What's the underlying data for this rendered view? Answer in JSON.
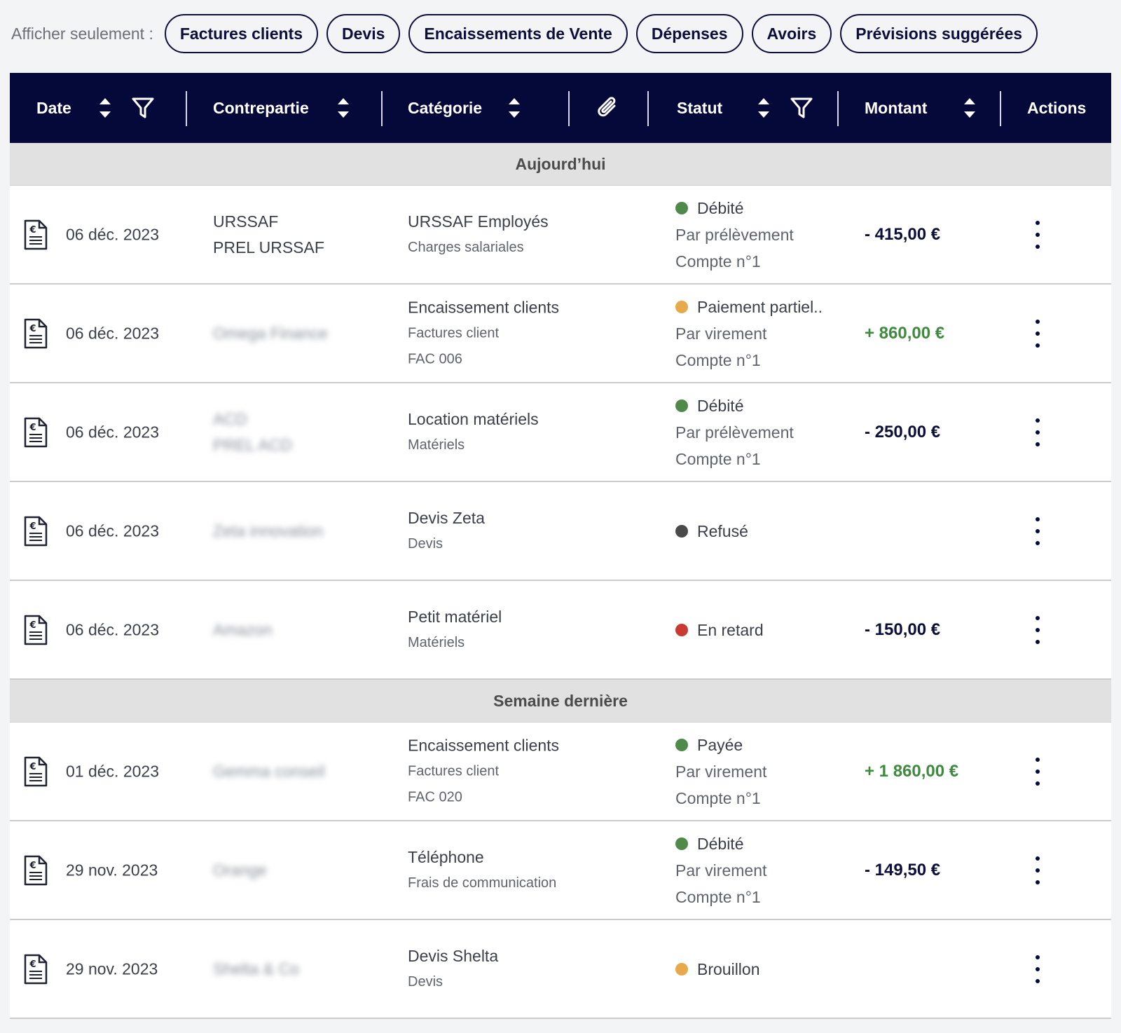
{
  "filter": {
    "label": "Afficher seulement :",
    "chips": [
      "Factures clients",
      "Devis",
      "Encaissements de Vente",
      "Dépenses",
      "Avoirs",
      "Prévisions suggérées"
    ]
  },
  "columns": {
    "date": "Date",
    "contrepartie": "Contrepartie",
    "categorie": "Catégorie",
    "statut": "Statut",
    "montant": "Montant",
    "actions": "Actions"
  },
  "icons": {
    "sort": "sort-icon",
    "filter": "filter-icon",
    "attachment": "paperclip-icon",
    "document": "invoice-document-icon",
    "more": "kebab-menu-icon"
  },
  "colors": {
    "header_bg": "#05093a",
    "green": "#4f8a4a",
    "orange": "#e8a94a",
    "grey": "#4a4a4a",
    "red": "#c83a32",
    "positive_amount": "#3e8a3e"
  },
  "groups": [
    {
      "title": "Aujourd’hui",
      "rows": [
        {
          "date": "06 déc. 2023",
          "party": [
            "URSSAF",
            "PREL URSSAF"
          ],
          "party_blurred": false,
          "cat": "URSSAF Employés",
          "cat_sub": [
            "Charges salariales"
          ],
          "status": "Débité",
          "status_color": "#4f8a4a",
          "status_sub": [
            "Par prélèvement",
            "Compte n°1"
          ],
          "amount": "- 415,00 €",
          "positive": false
        },
        {
          "date": "06 déc. 2023",
          "party": [
            "Omega Finance"
          ],
          "party_blurred": true,
          "cat": "Encaissement clients",
          "cat_sub": [
            "Factures client",
            "FAC 006"
          ],
          "status": "Paiement partiel..",
          "status_color": "#e8a94a",
          "status_sub": [
            "Par virement",
            "Compte n°1"
          ],
          "amount": "+ 860,00 €",
          "positive": true
        },
        {
          "date": "06 déc. 2023",
          "party": [
            "ACD",
            "PREL ACD"
          ],
          "party_blurred": true,
          "cat": "Location matériels",
          "cat_sub": [
            "Matériels"
          ],
          "status": "Débité",
          "status_color": "#4f8a4a",
          "status_sub": [
            "Par prélèvement",
            "Compte n°1"
          ],
          "amount": "- 250,00 €",
          "positive": false
        },
        {
          "date": "06 déc. 2023",
          "party": [
            "Zeta innovation"
          ],
          "party_blurred": true,
          "cat": "Devis Zeta",
          "cat_sub": [
            "Devis"
          ],
          "status": "Refusé",
          "status_color": "#4a4a4a",
          "status_sub": [],
          "amount": "",
          "positive": false
        },
        {
          "date": "06 déc. 2023",
          "party": [
            "Amazon"
          ],
          "party_blurred": true,
          "cat": "Petit matériel",
          "cat_sub": [
            "Matériels"
          ],
          "status": "En retard",
          "status_color": "#c83a32",
          "status_sub": [],
          "amount": "- 150,00 €",
          "positive": false
        }
      ]
    },
    {
      "title": "Semaine dernière",
      "rows": [
        {
          "date": "01 déc. 2023",
          "party": [
            "Gemma conseil"
          ],
          "party_blurred": true,
          "cat": "Encaissement clients",
          "cat_sub": [
            "Factures client",
            "FAC 020"
          ],
          "status": "Payée",
          "status_color": "#4f8a4a",
          "status_sub": [
            "Par virement",
            "Compte n°1"
          ],
          "amount": "+ 1 860,00 €",
          "positive": true
        },
        {
          "date": "29 nov. 2023",
          "party": [
            "Orange"
          ],
          "party_blurred": true,
          "cat": "Téléphone",
          "cat_sub": [
            "Frais de communication"
          ],
          "status": "Débité",
          "status_color": "#4f8a4a",
          "status_sub": [
            "Par virement",
            "Compte n°1"
          ],
          "amount": "- 149,50 €",
          "positive": false
        },
        {
          "date": "29 nov. 2023",
          "party": [
            "Shelta & Co"
          ],
          "party_blurred": true,
          "cat": "Devis Shelta",
          "cat_sub": [
            "Devis"
          ],
          "status": "Brouillon",
          "status_color": "#e8a94a",
          "status_sub": [],
          "amount": "",
          "positive": false
        }
      ]
    }
  ]
}
